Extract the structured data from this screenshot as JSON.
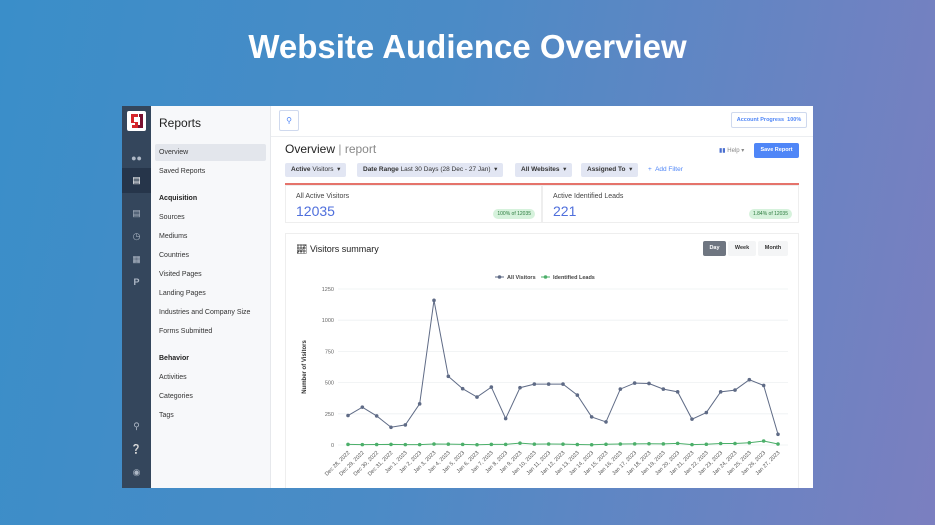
{
  "hero_title": "Website Audience Overview",
  "rail": {
    "icons": [
      "users-icon",
      "chart-icon",
      "list-icon",
      "clock-icon",
      "grid-icon",
      "p-icon",
      "search-icon",
      "help-icon",
      "user-icon"
    ]
  },
  "sidebar": {
    "title": "Reports",
    "items": [
      {
        "label": "Overview",
        "active": true
      },
      {
        "label": "Saved Reports"
      },
      {
        "label": "Acquisition",
        "header": true
      },
      {
        "label": "Sources"
      },
      {
        "label": "Mediums"
      },
      {
        "label": "Countries"
      },
      {
        "label": "Visited Pages"
      },
      {
        "label": "Landing Pages"
      },
      {
        "label": "Industries and Company Size"
      },
      {
        "label": "Forms Submitted"
      },
      {
        "label": "Behavior",
        "header": true
      },
      {
        "label": "Activities"
      },
      {
        "label": "Categories"
      },
      {
        "label": "Tags"
      }
    ]
  },
  "topbar": {
    "account_progress": "Account Progress",
    "progress_value": "100%"
  },
  "header": {
    "title": "Overview",
    "subtitle": "report",
    "help": "Help",
    "save": "Save Report"
  },
  "filters": [
    {
      "bold": "Active",
      "rest": " Visitors"
    },
    {
      "bold": "Date Range",
      "rest": " Last 30 Days (28 Dec - 27 Jan)"
    },
    {
      "bold": "All Websites",
      "rest": ""
    },
    {
      "bold": "Assigned To",
      "rest": ""
    }
  ],
  "add_filter": "Add Filter",
  "cards": [
    {
      "label": "All Active Visitors",
      "value": "12035",
      "tag": "100% of 12035"
    },
    {
      "label": "Active Identified Leads",
      "value": "221",
      "tag": "1.84% of 12035"
    }
  ],
  "summary": {
    "title": "Visitors summary",
    "tabs": [
      "Day",
      "Week",
      "Month"
    ],
    "active_tab": "Day"
  },
  "colors": {
    "accent": "#4f86f7",
    "visitors": "#5f6b86",
    "leads": "#4caf6a",
    "red_bar": "#e5736b"
  },
  "chart_data": {
    "type": "line",
    "x": [
      "Dec 28, 2022",
      "Dec 29, 2022",
      "Dec 30, 2022",
      "Dec 31, 2022",
      "Jan 1, 2023",
      "Jan 2, 2023",
      "Jan 3, 2023",
      "Jan 4, 2023",
      "Jan 5, 2023",
      "Jan 6, 2023",
      "Jan 7, 2023",
      "Jan 8, 2023",
      "Jan 9, 2023",
      "Jan 10, 2023",
      "Jan 11, 2023",
      "Jan 12, 2023",
      "Jan 13, 2023",
      "Jan 14, 2023",
      "Jan 15, 2023",
      "Jan 16, 2023",
      "Jan 17, 2023",
      "Jan 18, 2023",
      "Jan 19, 2023",
      "Jan 20, 2023",
      "Jan 21, 2023",
      "Jan 22, 2023",
      "Jan 23, 2023",
      "Jan 24, 2023",
      "Jan 25, 2023",
      "Jan 26, 2023",
      "Jan 27, 2023"
    ],
    "series": [
      {
        "name": "All Visitors",
        "values": [
          236,
          303,
          233,
          142,
          161,
          330,
          1159,
          550,
          451,
          384,
          464,
          212,
          459,
          488,
          488,
          488,
          400,
          225,
          185,
          448,
          496,
          493,
          448,
          426,
          207,
          260,
          426,
          440,
          523,
          477,
          86
        ]
      },
      {
        "name": "Identified Leads",
        "values": [
          5,
          3,
          4,
          5,
          3,
          3,
          8,
          7,
          5,
          2,
          5,
          5,
          15,
          7,
          8,
          7,
          4,
          2,
          6,
          8,
          9,
          10,
          9,
          13,
          3,
          6,
          12,
          12,
          18,
          32,
          8
        ]
      }
    ],
    "ylabel": "Number of Visitors",
    "ylim": [
      0,
      1250
    ],
    "yticks": [
      0,
      250,
      500,
      750,
      1000,
      1250
    ],
    "grid": true,
    "legend": "top"
  }
}
